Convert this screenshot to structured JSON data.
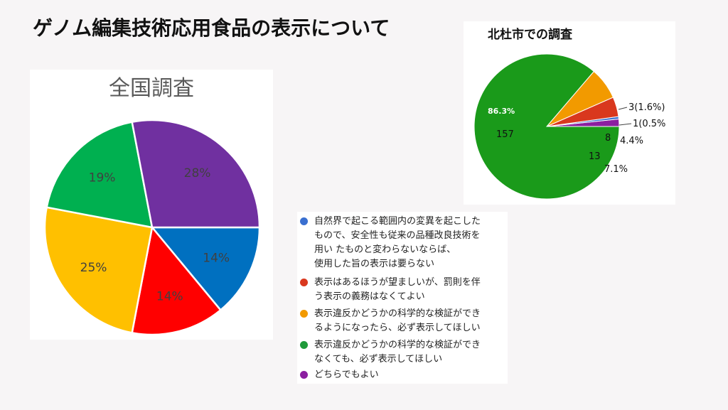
{
  "slide": {
    "title": "ゲノム編集技術応用食品の表示について"
  },
  "legend": {
    "items": [
      {
        "label": "自然界で起こる範囲内の変異を起こした\nもので、安全性も従来の品種改良技術を\n用い たものと変わらないならば、\n使用した旨の表示は要らない",
        "color": "#3a6fd0"
      },
      {
        "label": "表示はあるほうが望ましいが、罰則を伴\nう表示の義務はなくてよい",
        "color": "#d9381e"
      },
      {
        "label": "表示違反かどうかの科学的な検証ができ\nるようになったら、必ず表示してほしい",
        "color": "#f29a00"
      },
      {
        "label": "表示違反かどうかの科学的な検証ができ\nなくても、必ず表示してほしい",
        "color": "#1f9a3a"
      },
      {
        "label": "どちらでもよい",
        "color": "#8b1fa0"
      }
    ]
  },
  "chart_data": [
    {
      "type": "pie",
      "title": "全国調査",
      "slices": [
        {
          "value": 14,
          "label": "14%",
          "color": "#0070c0"
        },
        {
          "value": 14,
          "label": "14%",
          "color": "#ff0000"
        },
        {
          "value": 25,
          "label": "25%",
          "color": "#ffc000"
        },
        {
          "value": 19,
          "label": "19%",
          "color": "#00b050"
        },
        {
          "value": 28,
          "label": "28%",
          "color": "#7030a0"
        }
      ]
    },
    {
      "type": "pie",
      "title": "北杜市での調査",
      "slices": [
        {
          "value": 3,
          "label": "3(1.6%)",
          "color": "#8b1fa0"
        },
        {
          "value": 1,
          "label": "1(0.5%",
          "color": "#3a6fd0"
        },
        {
          "value": 8,
          "label": "8",
          "pct_label": "4.4%",
          "color": "#d9381e"
        },
        {
          "value": 13,
          "label": "13",
          "pct_label": "7.1%",
          "color": "#f29a00"
        },
        {
          "value": 157,
          "label": "157",
          "pct_label": "86.3%",
          "color": "#1a9a1a"
        }
      ]
    }
  ]
}
